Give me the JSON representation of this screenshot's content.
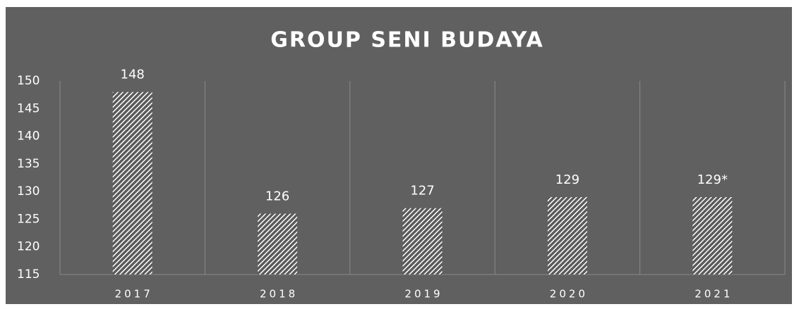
{
  "chart_data": {
    "type": "bar",
    "title": "GROUP SENI BUDAYA",
    "categories": [
      "2017",
      "2018",
      "2019",
      "2020",
      "2021"
    ],
    "values": [
      148,
      126,
      127,
      129,
      129
    ],
    "value_labels": [
      "148",
      "126",
      "127",
      "129",
      "129*"
    ],
    "color": "#ffffff",
    "ylim": [
      115,
      150
    ],
    "yticks": [
      115,
      120,
      125,
      130,
      135,
      140,
      145,
      150
    ]
  }
}
